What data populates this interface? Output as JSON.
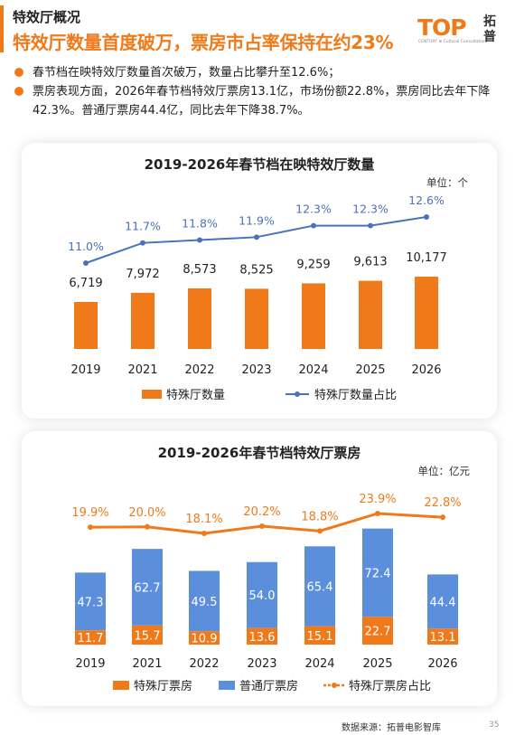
{
  "header": {
    "subtitle": "特效厅概况",
    "headline": "特效厅数量首度破万，票房市占率保持在约23%"
  },
  "logo": {
    "brand": "TOP",
    "tagline": "CENTURY ⊕ Cultural Consultation",
    "name_line1": "拓",
    "name_line2": "普",
    "color": "#f07a1a"
  },
  "bullets": [
    "春节档在映特效厅数量首次破万，数量占比攀升至12.6%；",
    "票房表现方面，2026年春节档特效厅票房13.1亿，市场份额22.8%，票房同比去年下降42.3%。普通厅票房44.4亿，同比去年下降38.7%。"
  ],
  "source": "数据来源：拓普电影智库",
  "page_number": "35",
  "chart_data": [
    {
      "type": "bar",
      "title": "2019-2026年春节档在映特效厅数量",
      "unit_label": "单位：个",
      "categories": [
        "2019",
        "2021",
        "2022",
        "2023",
        "2024",
        "2025",
        "2026"
      ],
      "series": [
        {
          "name": "特殊厅数量",
          "type": "bar",
          "values": [
            6719,
            7972,
            8573,
            8525,
            9259,
            9613,
            10177
          ],
          "labels": [
            "6,719",
            "7,972",
            "8,573",
            "8,525",
            "9,259",
            "9,613",
            "10,177"
          ],
          "color": "#f07a1a"
        },
        {
          "name": "特殊厅数量占比",
          "type": "line",
          "values": [
            11.0,
            11.7,
            11.8,
            11.9,
            12.3,
            12.3,
            12.6
          ],
          "labels": [
            "11.0%",
            "11.7%",
            "11.8%",
            "11.9%",
            "12.3%",
            "12.3%",
            "12.6%"
          ],
          "color": "#4a72b8"
        }
      ],
      "legend_position": "bottom"
    },
    {
      "type": "bar",
      "stacked": true,
      "title": "2019-2026年春节档特效厅票房",
      "unit_label": "单位：亿元",
      "categories": [
        "2019",
        "2021",
        "2022",
        "2023",
        "2024",
        "2025",
        "2026"
      ],
      "series": [
        {
          "name": "特殊厅票房",
          "type": "bar",
          "values": [
            11.7,
            15.7,
            10.9,
            13.6,
            15.1,
            22.7,
            13.1
          ],
          "labels": [
            "11.7",
            "15.7",
            "10.9",
            "13.6",
            "15.1",
            "22.7",
            "13.1"
          ],
          "color": "#f07a1a"
        },
        {
          "name": "普通厅票房",
          "type": "bar",
          "values": [
            47.3,
            62.7,
            49.5,
            54.0,
            65.4,
            72.4,
            44.4
          ],
          "labels": [
            "47.3",
            "62.7",
            "49.5",
            "54.0",
            "65.4",
            "72.4",
            "44.4"
          ],
          "color": "#5b8fdc"
        },
        {
          "name": "特殊厅票房占比",
          "type": "line",
          "values": [
            19.9,
            20.0,
            18.1,
            20.2,
            18.8,
            23.9,
            22.8
          ],
          "labels": [
            "19.9%",
            "20.0%",
            "18.1%",
            "20.2%",
            "18.8%",
            "23.9%",
            "22.8%"
          ],
          "color": "#f07a1a"
        }
      ],
      "legend_position": "bottom"
    }
  ]
}
